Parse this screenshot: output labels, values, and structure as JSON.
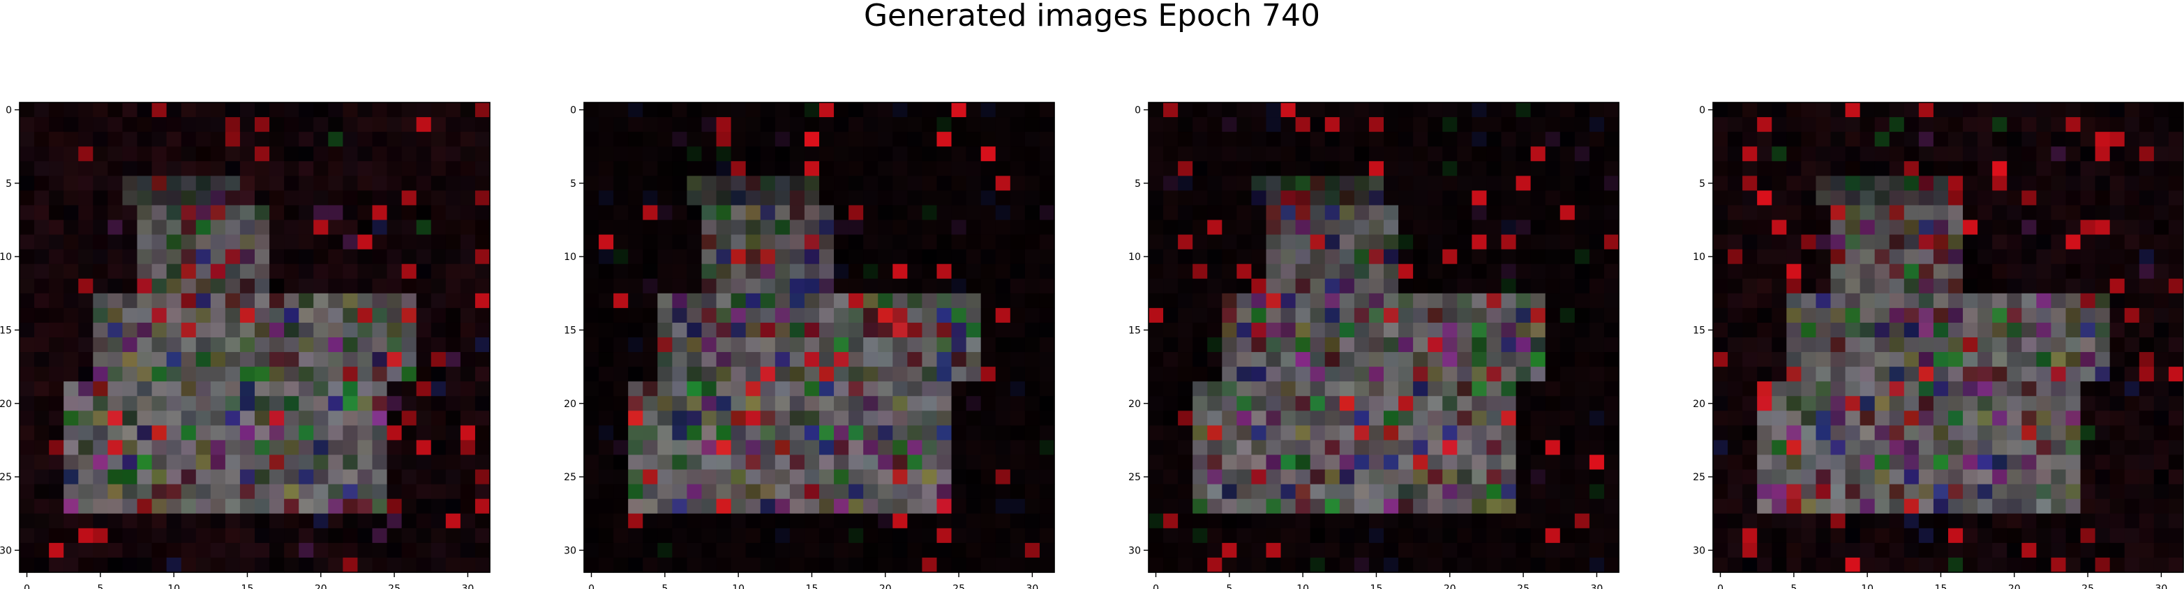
{
  "figure": {
    "title": "Generated images Epoch 740"
  },
  "chart_data": {
    "type": "heatmap",
    "title": "Generated images Epoch 740",
    "panel_count": 4,
    "grid_size": 32,
    "x_ticks": [
      0,
      5,
      10,
      15,
      20,
      25,
      30
    ],
    "y_ticks": [
      0,
      5,
      10,
      15,
      20,
      25,
      30
    ],
    "xlim": [
      -0.5,
      31.5
    ],
    "ylim": [
      31.5,
      -0.5
    ],
    "grid": false,
    "background_color": "#000000",
    "colors": {
      "red": "#c8141e",
      "green": "#1e7a28",
      "purple": "#7a2878",
      "blue": "#28287a",
      "gray": "#6e6a6e",
      "olive": "#6e6a3c"
    },
    "panels": [
      {
        "index": 0,
        "seed": 11,
        "background_level": 0.55
      },
      {
        "index": 1,
        "seed": 23,
        "background_level": 0.25
      },
      {
        "index": 2,
        "seed": 37,
        "background_level": 0.3
      },
      {
        "index": 3,
        "seed": 53,
        "background_level": 0.5
      }
    ]
  }
}
